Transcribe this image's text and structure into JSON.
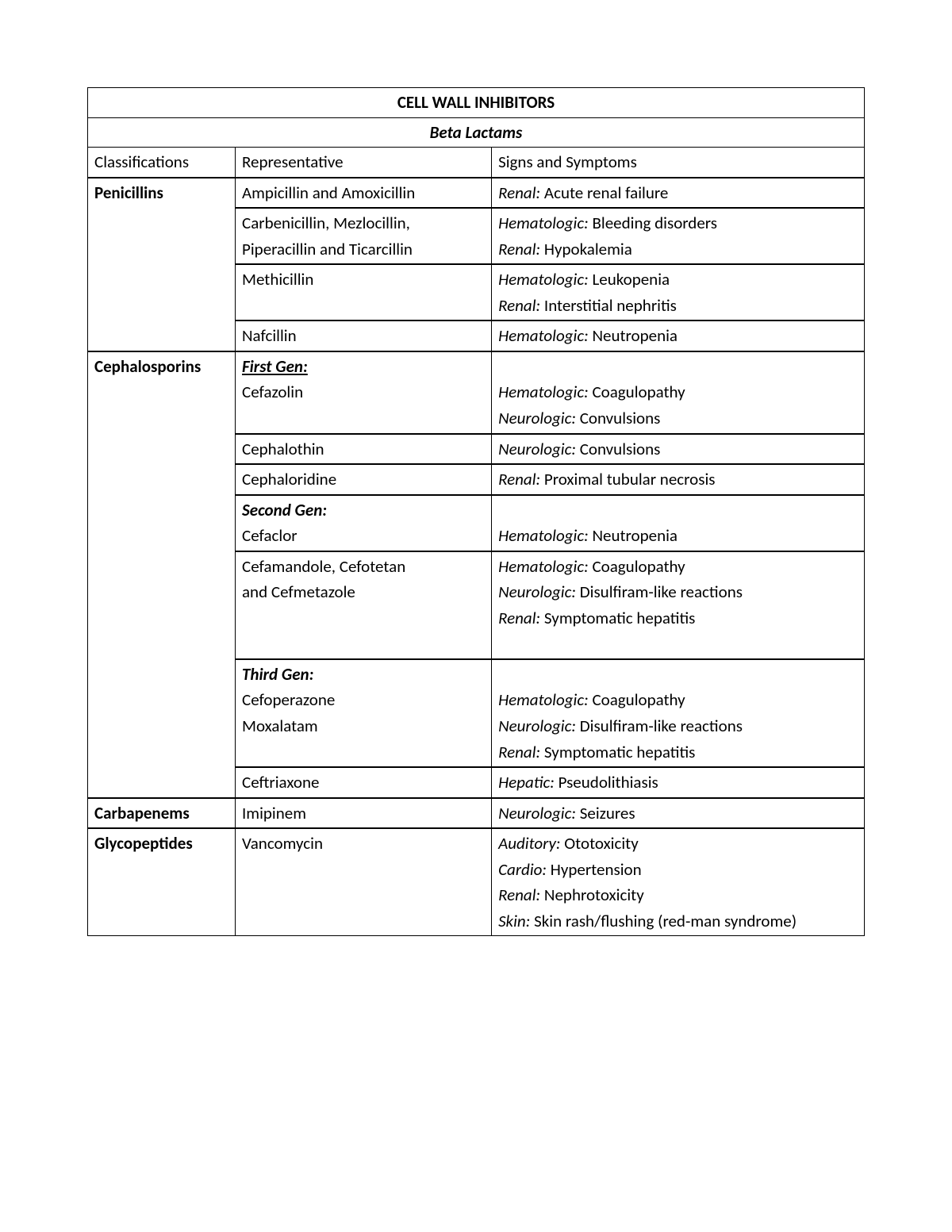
{
  "title": "CELL WALL INHIBITORS",
  "subtitle": "Beta Lactams",
  "headers": {
    "col1": "Classifications",
    "col2": "Representative",
    "col3": "Signs and Symptoms"
  },
  "penicillins": {
    "name": "Penicillins",
    "r1": {
      "rep": "Ampicillin and Amoxicillin",
      "sys1": "Renal:",
      "txt1": " Acute renal failure"
    },
    "r2": {
      "rep1": "Carbenicillin, Mezlocillin,",
      "rep2": "Piperacillin and Ticarcillin",
      "sys1": "Hematologic:",
      "txt1": " Bleeding disorders",
      "sys2": "Renal:",
      "txt2": " Hypokalemia"
    },
    "r3": {
      "rep": "Methicillin",
      "sys1": "Hematologic:",
      "txt1": " Leukopenia",
      "sys2": "Renal:",
      "txt2": " Interstitial nephritis"
    },
    "r4": {
      "rep": "Nafcillin",
      "sys1": "Hematologic:",
      "txt1": " Neutropenia"
    }
  },
  "cephalosporins": {
    "name": "Cephalosporins",
    "gen1": "First Gen:",
    "r1": {
      "rep": "Cefazolin",
      "sys1": "Hematologic:",
      "txt1": " Coagulopathy",
      "sys2": "Neurologic:",
      "txt2": " Convulsions"
    },
    "r2": {
      "rep": "Cephalothin",
      "sys1": "Neurologic:",
      "txt1": " Convulsions"
    },
    "r3": {
      "rep": "Cephaloridine",
      "sys1": "Renal:",
      "txt1": " Proximal tubular necrosis"
    },
    "gen2": "Second Gen:",
    "r4": {
      "rep": "Cefaclor",
      "sys1": "Hematologic:",
      "txt1": " Neutropenia"
    },
    "r5": {
      "rep1": "Cefamandole, Cefotetan",
      "rep2": "and Cefmetazole",
      "sys1": "Hematologic:",
      "txt1": " Coagulopathy",
      "sys2": "Neurologic:",
      "txt2": " Disulfiram-like reactions",
      "sys3": "Renal:",
      "txt3": " Symptomatic hepatitis"
    },
    "gen3": "Third Gen:",
    "r6": {
      "rep1": "Cefoperazone",
      "rep2": "Moxalatam",
      "sys1": "Hematologic:",
      "txt1": " Coagulopathy",
      "sys2": "Neurologic:",
      "txt2": " Disulfiram-like reactions",
      "sys3": "Renal:",
      "txt3": " Symptomatic hepatitis"
    },
    "r7": {
      "rep": "Ceftriaxone",
      "sys1": "Hepatic:",
      "txt1": " Pseudolithiasis"
    }
  },
  "carbapenems": {
    "name": "Carbapenems",
    "r1": {
      "rep": "Imipinem",
      "sys1": "Neurologic:",
      "txt1": " Seizures"
    }
  },
  "glycopeptides": {
    "name": "Glycopeptides",
    "r1": {
      "rep": "Vancomycin",
      "sys1": "Auditory:",
      "txt1": " Ototoxicity",
      "sys2": "Cardio:",
      "txt2": " Hypertension",
      "sys3": "Renal:",
      "txt3": " Nephrotoxicity",
      "sys4": "Skin:",
      "txt4": " Skin rash/flushing (red-man syndrome)"
    }
  }
}
